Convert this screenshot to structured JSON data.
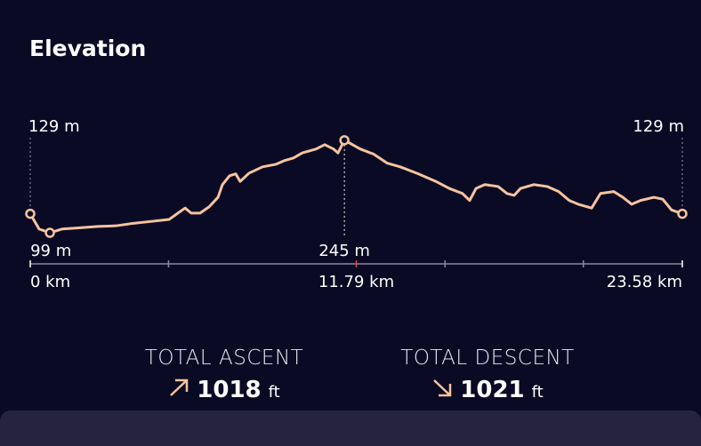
{
  "header": {
    "title": "Elevation"
  },
  "chart_data": {
    "type": "line",
    "color": "#f6c3a0",
    "x": [
      0,
      0.32,
      0.71,
      1.16,
      1.8,
      2.45,
      3.09,
      3.73,
      4.38,
      5.02,
      5.34,
      5.6,
      5.82,
      6.14,
      6.47,
      6.79,
      6.95,
      7.21,
      7.43,
      7.59,
      7.91,
      8.4,
      8.88,
      9.2,
      9.52,
      9.84,
      10.33,
      10.65,
      10.97,
      11.13,
      11.36,
      11.61,
      11.94,
      12.42,
      12.9,
      13.38,
      14.03,
      14.67,
      15.15,
      15.63,
      15.89,
      16.12,
      16.44,
      16.92,
      17.24,
      17.5,
      17.73,
      18.21,
      18.69,
      19.11,
      19.49,
      19.82,
      20.3,
      20.62,
      21.1,
      21.43,
      21.75,
      22.07,
      22.55,
      22.87,
      23.19,
      23.58
    ],
    "values": [
      129,
      105,
      99,
      105,
      107,
      109,
      110,
      114,
      117,
      120,
      130,
      138,
      130,
      130,
      140,
      155,
      175,
      189,
      192,
      180,
      193,
      203,
      207,
      213,
      217,
      225,
      231,
      238,
      231,
      225,
      245,
      239,
      231,
      223,
      209,
      203,
      192,
      180,
      169,
      161,
      150,
      169,
      175,
      172,
      161,
      158,
      169,
      175,
      172,
      164,
      150,
      144,
      138,
      161,
      164,
      155,
      144,
      150,
      155,
      152,
      135,
      129
    ],
    "xlim": [
      0,
      23.58
    ],
    "ylim": [
      50,
      298
    ],
    "xticks": [
      {
        "value": 0,
        "label": "0 km"
      },
      {
        "value": 11.79,
        "label": "11.79 km"
      },
      {
        "value": 23.58,
        "label": "23.58 km"
      }
    ],
    "xminorticks": [
      5,
      15,
      20
    ],
    "annotations": [
      {
        "label": "129 m",
        "x": 0,
        "y": 129
      },
      {
        "label": "99 m",
        "x": 0.71,
        "y": 99
      },
      {
        "label": "245 m",
        "x": 11.36,
        "y": 245
      },
      {
        "label": "129 m",
        "x": 23.58,
        "y": 129
      }
    ]
  },
  "stats": [
    {
      "label": "TOTAL ASCENT",
      "value": "1018",
      "unit": "ft"
    },
    {
      "label": "TOTAL DESCENT",
      "value": "1021",
      "unit": "ft"
    }
  ]
}
